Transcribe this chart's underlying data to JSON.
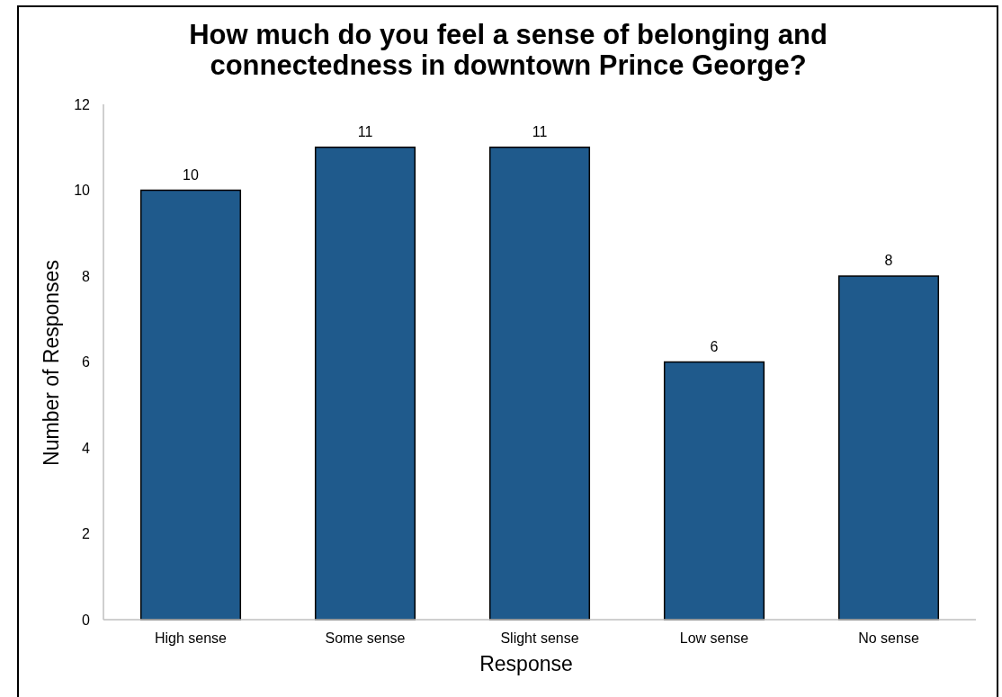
{
  "chart_data": {
    "type": "bar",
    "title": "How much do you feel a sense of belonging and\nconnectedness in downtown Prince George?",
    "xlabel": "Response",
    "ylabel": "Number of Responses",
    "categories": [
      "High sense",
      "Some sense",
      "Slight sense",
      "Low sense",
      "No sense"
    ],
    "values": [
      10,
      11,
      11,
      6,
      8
    ],
    "color": "#1f5a8c",
    "ylim": [
      0,
      12
    ],
    "yticks": [
      0,
      2,
      4,
      6,
      8,
      10,
      12
    ],
    "data_labels": true
  }
}
